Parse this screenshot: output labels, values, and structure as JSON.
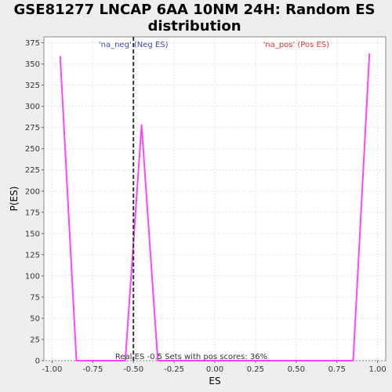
{
  "chart_data": {
    "type": "line",
    "title": "GSE81277 LNCAP 6AA 10NM 24H: Random ES distribution",
    "title_lines": [
      "GSE81277 LNCAP 6AA 10NM 24H: Random ES",
      "distribution"
    ],
    "xlabel": "ES",
    "ylabel": "P(ES)",
    "xlim": [
      -1.05,
      1.05
    ],
    "ylim": [
      0,
      382
    ],
    "grid": true,
    "x_ticks": [
      -1.0,
      -0.75,
      -0.5,
      -0.25,
      0.0,
      0.25,
      0.5,
      0.75,
      1.0
    ],
    "x_tick_labels": [
      "-1.00",
      "-0.75",
      "-0.50",
      "-0.25",
      "0.00",
      "0.25",
      "0.50",
      "0.75",
      "1.00"
    ],
    "y_ticks": [
      0,
      25,
      50,
      75,
      100,
      125,
      150,
      175,
      200,
      225,
      250,
      275,
      300,
      325,
      350,
      375
    ],
    "y_tick_labels": [
      "0",
      "25",
      "50",
      "75",
      "100",
      "125",
      "150",
      "175",
      "200",
      "225",
      "250",
      "275",
      "300",
      "325",
      "350",
      "375"
    ],
    "series": [
      {
        "color": "#ff44ff",
        "x": [
          -0.95,
          -0.85,
          -0.75,
          -0.65,
          -0.55,
          -0.45,
          -0.35,
          -0.25,
          -0.15,
          -0.05,
          0.05,
          0.15,
          0.25,
          0.35,
          0.45,
          0.55,
          0.65,
          0.75,
          0.85,
          0.95
        ],
        "y": [
          359,
          0,
          0,
          0,
          0,
          278,
          0,
          0,
          0,
          0,
          0,
          0,
          0,
          0,
          0,
          0,
          0,
          0,
          0,
          362
        ]
      }
    ],
    "real_es": {
      "value": -0.5,
      "color": "#333333"
    },
    "annotations": {
      "neg": {
        "text": "'na_neg' (Neg ES)",
        "color": "#4444cc"
      },
      "pos": {
        "text": "'na_pos' (Pos ES)",
        "color": "#dd3333"
      },
      "footer": {
        "text": "Real ES -0.5 Sets with pos scores: 36%",
        "color": "#333333"
      }
    }
  }
}
